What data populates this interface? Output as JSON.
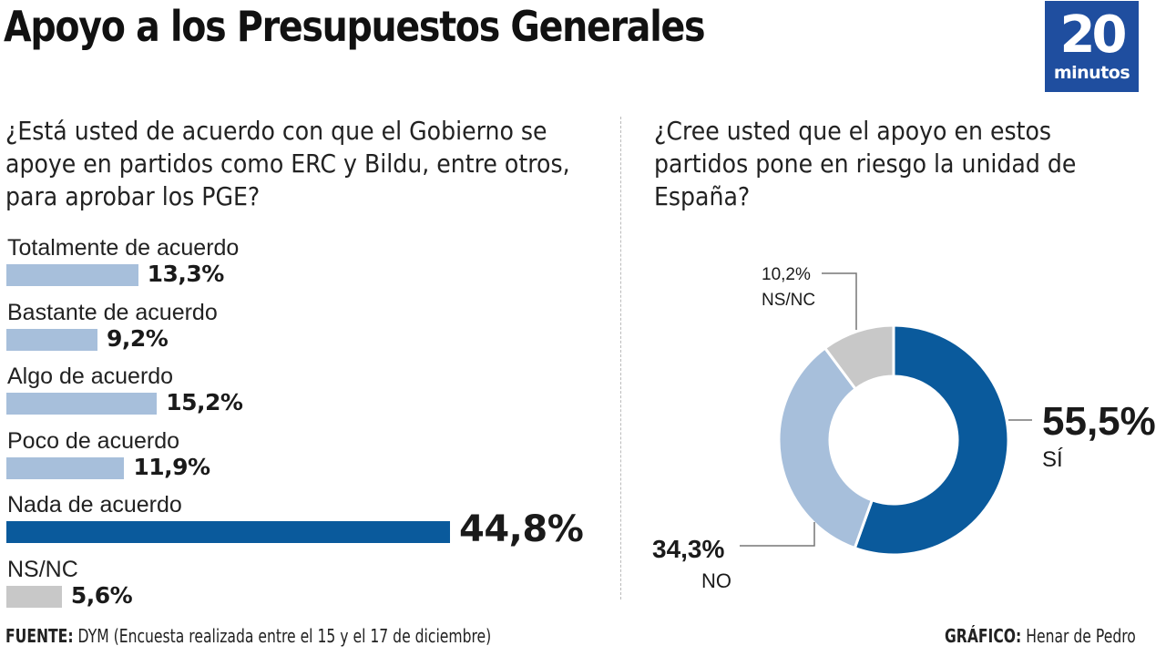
{
  "header": {
    "title": "Apoyo a los Presupuestos Generales",
    "logo_number": "20",
    "logo_word": "minutos",
    "logo_color": "#1f4e9f"
  },
  "footer": {
    "source_label": "FUENTE:",
    "source_text": " DYM (Encuesta realizada entre el 15 y el 17 de diciembre)",
    "credit_label": "GRÁFICO:",
    "credit_text": " Henar de Pedro"
  },
  "chart_data": [
    {
      "type": "bar",
      "orientation": "horizontal",
      "title": "¿Está usted de acuerdo con que el Gobierno se apoye en partidos como ERC y Bildu, entre otros, para aprobar los PGE?",
      "categories": [
        "Totalmente de acuerdo",
        "Bastante de acuerdo",
        "Algo de acuerdo",
        "Poco de acuerdo",
        "Nada de acuerdo",
        "NS/NC"
      ],
      "values": [
        13.3,
        9.2,
        15.2,
        11.9,
        44.8,
        5.6
      ],
      "value_labels": [
        "13,3%",
        "9,2%",
        "15,2%",
        "11,9%",
        "44,8%",
        "5,6%"
      ],
      "colors": [
        "#a7bfdb",
        "#a7bfdb",
        "#a7bfdb",
        "#a7bfdb",
        "#0a5a9c",
        "#c8c8c8"
      ],
      "unit": "%",
      "xlim": [
        0,
        44.8
      ]
    },
    {
      "type": "pie",
      "style": "donut",
      "title": "¿Cree usted que el apoyo en estos partidos pone en riesgo la unidad de España?",
      "categories": [
        "SÍ",
        "NO",
        "NS/NC"
      ],
      "values": [
        55.5,
        34.3,
        10.2
      ],
      "value_labels": [
        "55,5%",
        "34,3%",
        "10,2%"
      ],
      "colors": [
        "#0a5a9c",
        "#a7bfdb",
        "#c8c8c8"
      ],
      "start": "top, clockwise"
    }
  ]
}
